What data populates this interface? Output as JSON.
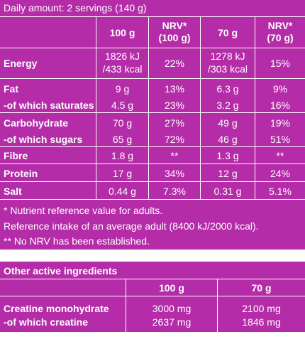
{
  "header": {
    "daily_amount": "Daily amount: 2 servings (140 g)"
  },
  "columns": {
    "c100": "100 g",
    "nrv100_l1": "NRV*",
    "nrv100_l2": "(100 g)",
    "c70": "70 g",
    "nrv70_l1": "NRV*",
    "nrv70_l2": "(70 g)"
  },
  "rows": [
    {
      "label": "Energy",
      "v100": [
        "1826 kJ",
        "/433 kcal"
      ],
      "nrv100": "22%",
      "v70": [
        "1278 kJ",
        "/303 kcal"
      ],
      "nrv70": "15%"
    },
    {
      "label": "Fat",
      "v100": "9 g",
      "nrv100": "13%",
      "v70": "6.3 g",
      "nrv70": "9%"
    },
    {
      "label": "-of which saturates",
      "v100": "4.5 g",
      "nrv100": "23%",
      "v70": "3.2 g",
      "nrv70": "16%"
    },
    {
      "label": "Carbohydrate",
      "v100": "70 g",
      "nrv100": "27%",
      "v70": "49 g",
      "nrv70": "19%"
    },
    {
      "label": "-of which sugars",
      "v100": "65 g",
      "nrv100": "72%",
      "v70": "46 g",
      "nrv70": "51%"
    },
    {
      "label": "Fibre",
      "v100": "1.8 g",
      "nrv100": "**",
      "v70": "1.3 g",
      "nrv70": "**"
    },
    {
      "label": "Protein",
      "v100": "17 g",
      "nrv100": "34%",
      "v70": "12 g",
      "nrv70": "24%"
    },
    {
      "label": "Salt",
      "v100": "0.44 g",
      "nrv100": "7.3%",
      "v70": "0.31 g",
      "nrv70": "5.1%"
    }
  ],
  "footnotes": [
    "* Nutrient reference value for adults.",
    "Reference intake of an average adult (8400 kJ/2000 kcal).",
    "** No NRV has been established."
  ],
  "other": {
    "title": "Other active ingredients",
    "col100": "100 g",
    "col70": "70 g",
    "row1_label": "Creatine monohydrate",
    "row1_v100": "3000 mg",
    "row1_v70": "2100 mg",
    "row2_label": "-of which creatine",
    "row2_v100": "2637 mg",
    "row2_v70": "1846 mg"
  }
}
